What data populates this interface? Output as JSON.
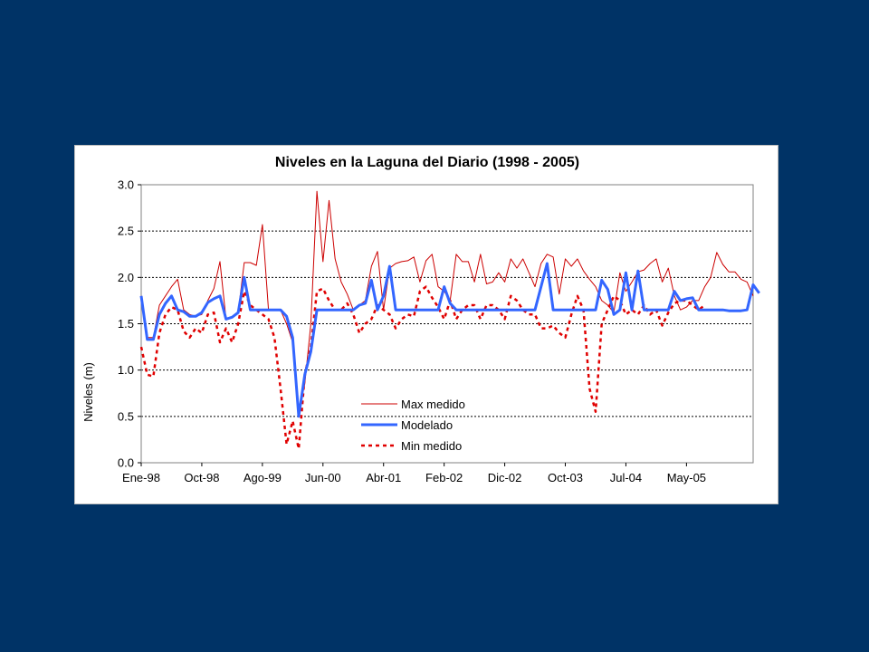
{
  "chart_data": {
    "type": "line",
    "title": "Niveles en la Laguna del Diario (1998 - 2005)",
    "xlabel": "",
    "ylabel": "Niveles (m)",
    "ylim": [
      0,
      3
    ],
    "yticks": [
      "0.0",
      "0.5",
      "1.0",
      "1.5",
      "2.0",
      "2.5",
      "3.0"
    ],
    "xticks": [
      "Ene-98",
      "Oct-98",
      "Ago-99",
      "Jun-00",
      "Abr-01",
      "Feb-02",
      "Dic-02",
      "Oct-03",
      "Jul-04",
      "May-05"
    ],
    "grid": "horizontal dashed",
    "legend_position": "inside-bottom-center",
    "colors": {
      "background": "#003366",
      "max": "#cc0000",
      "modelado": "#3366ff",
      "min": "#e00000"
    },
    "series": [
      {
        "name": "Max medido",
        "style": "thin-solid",
        "values": [
          1.8,
          1.35,
          1.35,
          1.7,
          1.8,
          1.9,
          1.98,
          1.65,
          1.6,
          1.58,
          1.6,
          1.75,
          1.88,
          2.17,
          1.55,
          1.57,
          1.62,
          2.16,
          2.16,
          2.13,
          2.57,
          1.65,
          1.65,
          1.65,
          1.5,
          1.3,
          0.55,
          0.85,
          1.5,
          2.93,
          2.17,
          2.83,
          2.2,
          1.95,
          1.82,
          1.65,
          1.7,
          1.75,
          2.12,
          2.28,
          1.65,
          2.1,
          2.15,
          2.17,
          2.18,
          2.22,
          1.95,
          2.18,
          2.25,
          1.9,
          1.85,
          1.75,
          2.25,
          2.17,
          2.17,
          1.95,
          2.25,
          1.93,
          1.95,
          2.05,
          1.95,
          2.2,
          2.1,
          2.2,
          2.05,
          1.9,
          2.15,
          2.25,
          2.22,
          1.82,
          2.2,
          2.12,
          2.2,
          2.07,
          1.98,
          1.9,
          1.75,
          1.7,
          1.62,
          2.05,
          1.85,
          1.95,
          2.06,
          2.08,
          2.15,
          2.2,
          1.95,
          2.1,
          1.8,
          1.65,
          1.68,
          1.75,
          1.75,
          1.9,
          2.0,
          2.27,
          2.14,
          2.06,
          2.06,
          1.98,
          1.95,
          1.8
        ]
      },
      {
        "name": "Modelado",
        "style": "thick-solid",
        "values": [
          1.8,
          1.33,
          1.33,
          1.6,
          1.72,
          1.8,
          1.65,
          1.63,
          1.58,
          1.58,
          1.62,
          1.73,
          1.77,
          1.8,
          1.55,
          1.57,
          1.62,
          2.0,
          1.65,
          1.65,
          1.65,
          1.65,
          1.65,
          1.65,
          1.58,
          1.35,
          0.5,
          0.95,
          1.2,
          1.65,
          1.65,
          1.65,
          1.65,
          1.65,
          1.65,
          1.65,
          1.7,
          1.72,
          1.97,
          1.65,
          1.8,
          2.12,
          1.65,
          1.65,
          1.65,
          1.65,
          1.65,
          1.65,
          1.65,
          1.65,
          1.9,
          1.72,
          1.65,
          1.65,
          1.65,
          1.65,
          1.65,
          1.65,
          1.65,
          1.65,
          1.65,
          1.65,
          1.65,
          1.65,
          1.65,
          1.65,
          1.9,
          2.15,
          1.65,
          1.65,
          1.65,
          1.65,
          1.65,
          1.65,
          1.65,
          1.65,
          1.97,
          1.87,
          1.6,
          1.65,
          2.05,
          1.65,
          2.07,
          1.65,
          1.65,
          1.65,
          1.65,
          1.65,
          1.85,
          1.75,
          1.77,
          1.78,
          1.65,
          1.65,
          1.65,
          1.65,
          1.65,
          1.64,
          1.64,
          1.64,
          1.65,
          1.92,
          1.83
        ]
      },
      {
        "name": "Min medido",
        "style": "dashed",
        "values": [
          1.25,
          0.95,
          0.93,
          1.4,
          1.6,
          1.68,
          1.65,
          1.42,
          1.35,
          1.45,
          1.4,
          1.6,
          1.62,
          1.3,
          1.45,
          1.3,
          1.5,
          1.85,
          1.7,
          1.65,
          1.6,
          1.55,
          1.35,
          0.8,
          0.2,
          0.45,
          0.15,
          0.95,
          1.25,
          1.85,
          1.88,
          1.75,
          1.65,
          1.65,
          1.72,
          1.6,
          1.4,
          1.5,
          1.55,
          1.7,
          1.65,
          1.6,
          1.45,
          1.55,
          1.6,
          1.58,
          1.85,
          1.9,
          1.78,
          1.68,
          1.55,
          1.75,
          1.55,
          1.65,
          1.7,
          1.7,
          1.55,
          1.7,
          1.7,
          1.65,
          1.55,
          1.8,
          1.75,
          1.65,
          1.6,
          1.6,
          1.45,
          1.45,
          1.48,
          1.4,
          1.35,
          1.6,
          1.8,
          1.65,
          0.8,
          0.55,
          1.5,
          1.65,
          1.8,
          1.75,
          1.6,
          1.65,
          1.6,
          1.7,
          1.6,
          1.65,
          1.48,
          1.62,
          1.72,
          1.75,
          1.75,
          1.7,
          1.65,
          1.7
        ]
      }
    ]
  }
}
